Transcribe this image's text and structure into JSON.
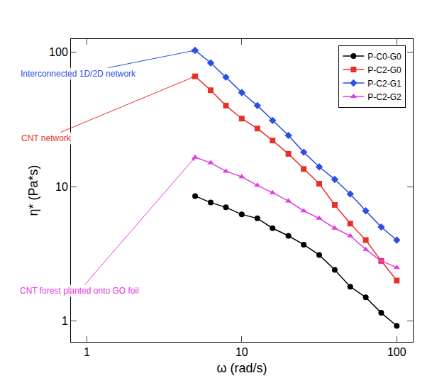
{
  "chart_data": {
    "type": "line",
    "x_label": "ω (rad/s)",
    "y_label": "η* (Pa*s)",
    "log": true,
    "grid": false,
    "legend": "upper right",
    "xlim": [
      0.79,
      127
    ],
    "ylim": [
      0.7,
      125
    ],
    "xticks": [
      1,
      10,
      100
    ],
    "yticks": [
      1,
      10,
      100
    ],
    "x": [
      5,
      6.3,
      7.9,
      10,
      12.6,
      15.8,
      20,
      25.1,
      31.6,
      39.8,
      50.1,
      63.1,
      79.4,
      100
    ],
    "series": [
      {
        "name": "P-C0-G0",
        "color": "#000000",
        "marker": "circle",
        "values": [
          8.5,
          7.6,
          7.0,
          6.2,
          5.8,
          4.9,
          4.3,
          3.7,
          3.1,
          2.4,
          1.8,
          1.5,
          1.15,
          0.92
        ]
      },
      {
        "name": "P-C2-G0",
        "color": "#e8302b",
        "marker": "square",
        "values": [
          66,
          52,
          40,
          32,
          27,
          22,
          17.5,
          13.5,
          10.5,
          7.3,
          5.3,
          4.0,
          2.8,
          2.0
        ]
      },
      {
        "name": "P-C2-G1",
        "color": "#2b4ee6",
        "marker": "diamond",
        "values": [
          103,
          83,
          65,
          50,
          40,
          31,
          24,
          18,
          14,
          11.3,
          8.8,
          6.6,
          5.0,
          4.0
        ]
      },
      {
        "name": "P-C2-G2",
        "color": "#e33be3",
        "marker": "triangle-up",
        "values": [
          16.5,
          15,
          13,
          11.8,
          10.2,
          9.0,
          7.8,
          6.6,
          5.8,
          4.9,
          4.3,
          3.4,
          2.8,
          2.5
        ]
      }
    ],
    "annotations": [
      {
        "text": "Interconnected 1D/2D network",
        "color": "#2b4ee6",
        "x": 5,
        "y": 103
      },
      {
        "text": "CNT network",
        "color": "#e8302b",
        "x": 5,
        "y": 66
      },
      {
        "text": "CNT forest planted onto GO foil",
        "color": "#e33be3",
        "x": 5,
        "y": 16.5
      }
    ]
  }
}
